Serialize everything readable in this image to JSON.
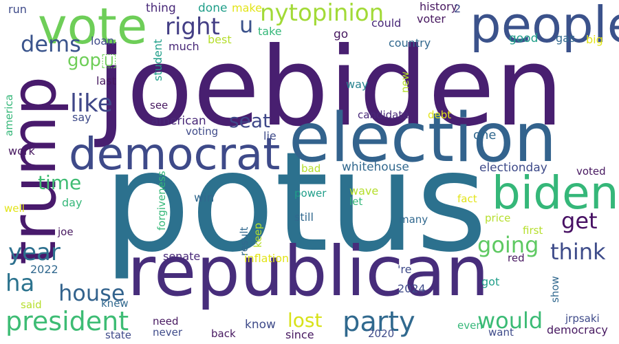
{
  "colors": {
    "background": "#ffffff",
    "dark_purple": "#46175f",
    "purple": "#482878",
    "indigo": "#3e4a89",
    "blue": "#31688e",
    "teal": "#26828e",
    "teal_green": "#1f9e89",
    "green": "#35b779",
    "light_green": "#6ece58",
    "lime": "#b5de2b",
    "yellow": "#e2e418"
  },
  "words": {
    "potus": "potus",
    "joebiden": "joebiden",
    "republican": "republican",
    "election": "election",
    "people": "people",
    "trump": "trump",
    "democrat": "democrat",
    "vote": "vote",
    "biden": "biden",
    "nytopinion": "nytopinion",
    "party": "party",
    "president": "president",
    "right": "right",
    "dems": "dems",
    "like": "like",
    "going": "going",
    "year": "year",
    "would": "would",
    "think": "think",
    "get": "get",
    "house": "house",
    "time": "time",
    "ha": "ha",
    "seat": "seat",
    "lost": "lost",
    "u": "u",
    "gop": "gop🇺",
    "run": "run",
    "thing": "thing",
    "done": "done",
    "make": "make",
    "history": "history",
    "two": "2",
    "loan": "loan",
    "student": "student",
    "much": "much",
    "take": "take",
    "best": "best",
    "could": "could",
    "voter": "voter",
    "good": "good",
    "gas": "gas",
    "big": "big",
    "country": "country",
    "go": "go",
    "last": "last",
    "see": "see",
    "say": "say",
    "new": "new",
    "way": "way",
    "candidate": "candidate",
    "debt": "debt",
    "america": "america",
    "american": "american",
    "voting": "voting",
    "lie": "lie",
    "one": "one",
    "work": "work",
    "forgiveness": "forgiveness",
    "whitehouse": "whitehouse",
    "electionday": "electionday",
    "voted": "voted",
    "bad": "bad",
    "wave": "wave",
    "win": "win",
    "power": "power",
    "let": "let",
    "fact": "fact",
    "day": "day",
    "well": "well",
    "still": "still",
    "many": "many",
    "price": "price",
    "joe": "joe",
    "result": "result",
    "keep": "keep",
    "first": "first",
    "senate": "senate",
    "inflation": "inflation",
    "red": "red",
    "y2022": "2022",
    "re": "'re",
    "y2024": "2024",
    "show": "show",
    "got": "got",
    "said": "said",
    "knew": "knew",
    "jrpsaki": "jrpsaki",
    "need": "need",
    "know": "know",
    "even": "even",
    "never": "never",
    "state": "state",
    "back": "back",
    "since": "since",
    "y2020": "2020",
    "want": "want",
    "democracy": "democracy"
  }
}
